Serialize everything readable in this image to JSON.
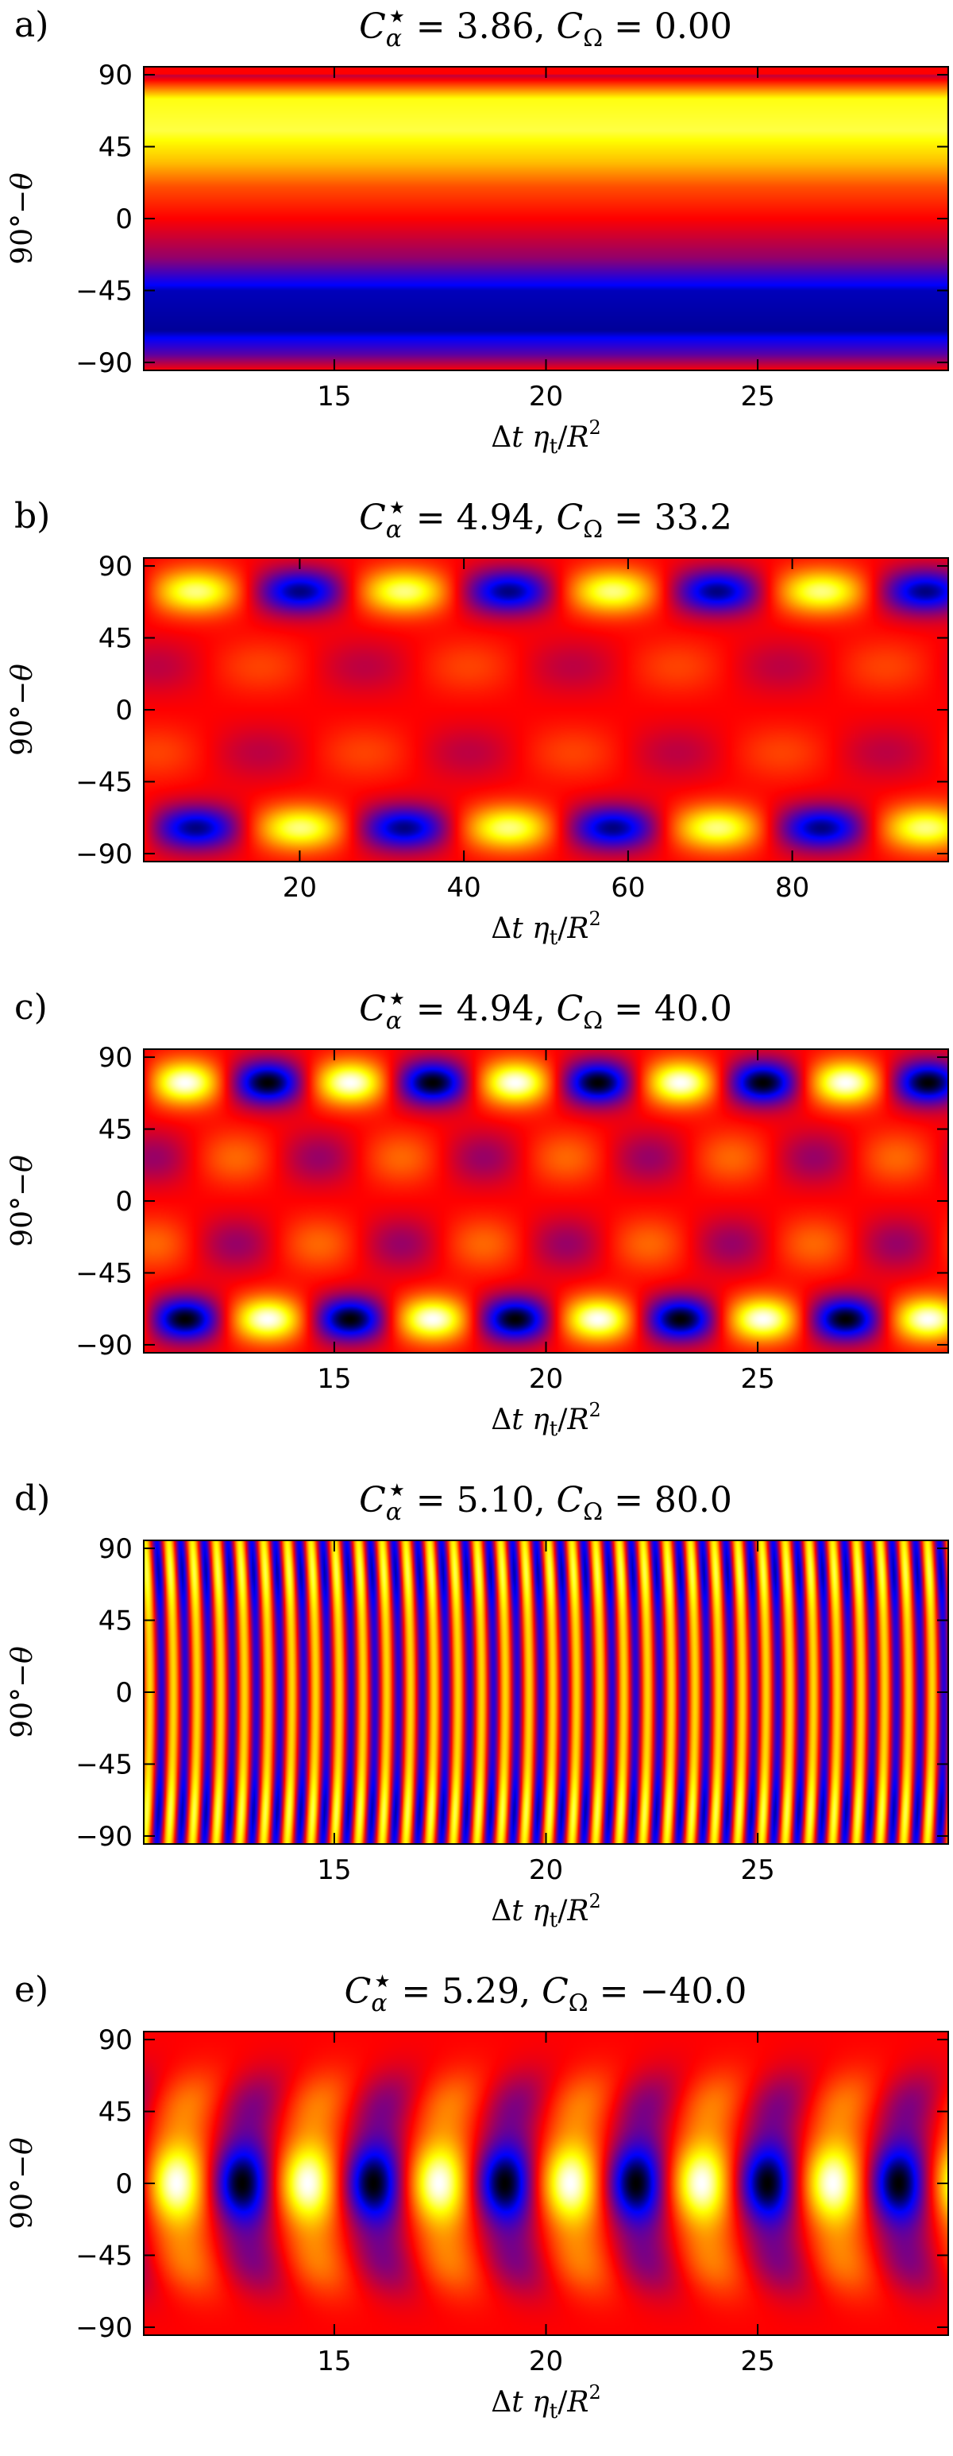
{
  "chart_data": [
    {
      "type": "heatmap",
      "panel_label": "a)",
      "title": "C_α* = 3.86, C_Ω = 0.00",
      "title_parts": {
        "alpha": "3.86",
        "omega": "0.00"
      },
      "xlabel": "Δt η_t/R²",
      "ylabel": "90°−θ",
      "xlim": [
        10.5,
        29.5
      ],
      "ylim": [
        -95,
        95
      ],
      "xticks": [
        15,
        20,
        25
      ],
      "yticks": [
        90,
        45,
        0,
        -45,
        -90
      ],
      "pattern": "stationary",
      "field_profile": [
        {
          "lat": 90,
          "value": -0.2
        },
        {
          "lat": 75,
          "value": 0.72
        },
        {
          "lat": 55,
          "value": 0.78
        },
        {
          "lat": 35,
          "value": 0.52
        },
        {
          "lat": 20,
          "value": 0.22
        },
        {
          "lat": 0,
          "value": 0.0
        },
        {
          "lat": -25,
          "value": -0.3
        },
        {
          "lat": -45,
          "value": -0.78
        },
        {
          "lat": -70,
          "value": -0.82
        },
        {
          "lat": -85,
          "value": -0.45
        },
        {
          "lat": -95,
          "value": 0.0
        }
      ],
      "colormap": [
        "#000000",
        "#0000ff",
        "#ff0000",
        "#ffff00",
        "#ffffff"
      ]
    },
    {
      "type": "heatmap",
      "panel_label": "b)",
      "title": "C_α* = 4.94, C_Ω = 33.2",
      "title_parts": {
        "alpha": "4.94",
        "omega": "33.2"
      },
      "xlabel": "Δt η_t/R²",
      "ylabel": "90°−θ",
      "xlim": [
        1,
        99
      ],
      "ylim": [
        -95,
        95
      ],
      "xticks": [
        20,
        40,
        60,
        80
      ],
      "yticks": [
        90,
        45,
        0,
        -45,
        -90
      ],
      "pattern": "oscillating_standing",
      "cycle_period": 25.4,
      "polar_amplitude": 0.85,
      "polar_latitude": 74,
      "equatorial_amplitude": 0.18,
      "colormap": [
        "#000000",
        "#0000ff",
        "#ff0000",
        "#ffff00",
        "#ffffff"
      ]
    },
    {
      "type": "heatmap",
      "panel_label": "c)",
      "title": "C_α* = 4.94, C_Ω = 40.0",
      "title_parts": {
        "alpha": "4.94",
        "omega": "40.0"
      },
      "xlabel": "Δt η_t/R²",
      "ylabel": "90°−θ",
      "xlim": [
        10.5,
        29.5
      ],
      "ylim": [
        -95,
        95
      ],
      "xticks": [
        15,
        20,
        25
      ],
      "yticks": [
        90,
        45,
        0,
        -45,
        -90
      ],
      "pattern": "oscillating_standing",
      "cycle_period": 3.9,
      "polar_amplitude": 1.0,
      "polar_latitude": 74,
      "equatorial_amplitude": 0.28,
      "colormap": [
        "#000000",
        "#0000ff",
        "#ff0000",
        "#ffff00",
        "#ffffff"
      ]
    },
    {
      "type": "heatmap",
      "panel_label": "d)",
      "title": "C_α* = 5.10, C_Ω = 80.0",
      "title_parts": {
        "alpha": "5.10",
        "omega": "80.0"
      },
      "xlabel": "Δt η_t/R²",
      "ylabel": "90°−θ",
      "xlim": [
        10.5,
        29.5
      ],
      "ylim": [
        -95,
        95
      ],
      "xticks": [
        15,
        20,
        25
      ],
      "yticks": [
        90,
        45,
        0,
        -45,
        -90
      ],
      "pattern": "oscillating_stripes",
      "cycle_period": 0.56,
      "amplitude": 0.8,
      "colormap": [
        "#000000",
        "#0000ff",
        "#ff0000",
        "#ffff00",
        "#ffffff"
      ]
    },
    {
      "type": "heatmap",
      "panel_label": "e)",
      "title": "C_α* = 5.29, C_Ω = −40.0",
      "title_parts": {
        "alpha": "5.29",
        "omega": "−40.0"
      },
      "xlabel": "Δt η_t/R²",
      "ylabel": "90°−θ",
      "xlim": [
        10.5,
        29.5
      ],
      "ylim": [
        -95,
        95
      ],
      "xticks": [
        15,
        20,
        25
      ],
      "yticks": [
        90,
        45,
        0,
        -45,
        -90
      ],
      "pattern": "oscillating_equatorial",
      "cycle_period": 3.1,
      "equatorial_amplitude": 1.0,
      "colormap": [
        "#000000",
        "#0000ff",
        "#ff0000",
        "#ffff00",
        "#ffffff"
      ]
    }
  ]
}
